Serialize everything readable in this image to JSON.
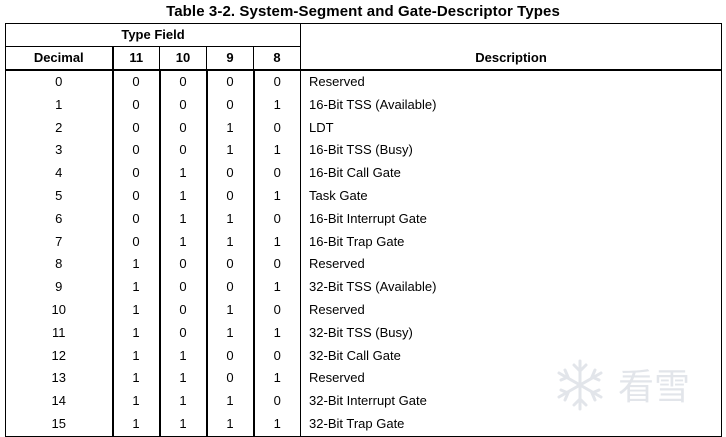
{
  "title": "Table 3-2.  System-Segment and Gate-Descriptor Types",
  "headers": {
    "type_field": "Type Field",
    "decimal": "Decimal",
    "bits": [
      "11",
      "10",
      "9",
      "8"
    ],
    "description": "Description"
  },
  "rows": [
    {
      "decimal": "0",
      "bits": [
        "0",
        "0",
        "0",
        "0"
      ],
      "description": "Reserved"
    },
    {
      "decimal": "1",
      "bits": [
        "0",
        "0",
        "0",
        "1"
      ],
      "description": "16-Bit TSS (Available)"
    },
    {
      "decimal": "2",
      "bits": [
        "0",
        "0",
        "1",
        "0"
      ],
      "description": "LDT"
    },
    {
      "decimal": "3",
      "bits": [
        "0",
        "0",
        "1",
        "1"
      ],
      "description": "16-Bit TSS (Busy)"
    },
    {
      "decimal": "4",
      "bits": [
        "0",
        "1",
        "0",
        "0"
      ],
      "description": "16-Bit Call Gate"
    },
    {
      "decimal": "5",
      "bits": [
        "0",
        "1",
        "0",
        "1"
      ],
      "description": "Task Gate"
    },
    {
      "decimal": "6",
      "bits": [
        "0",
        "1",
        "1",
        "0"
      ],
      "description": "16-Bit Interrupt Gate"
    },
    {
      "decimal": "7",
      "bits": [
        "0",
        "1",
        "1",
        "1"
      ],
      "description": "16-Bit Trap Gate"
    },
    {
      "decimal": "8",
      "bits": [
        "1",
        "0",
        "0",
        "0"
      ],
      "description": "Reserved"
    },
    {
      "decimal": "9",
      "bits": [
        "1",
        "0",
        "0",
        "1"
      ],
      "description": "32-Bit TSS (Available)"
    },
    {
      "decimal": "10",
      "bits": [
        "1",
        "0",
        "1",
        "0"
      ],
      "description": "Reserved"
    },
    {
      "decimal": "11",
      "bits": [
        "1",
        "0",
        "1",
        "1"
      ],
      "description": "32-Bit TSS (Busy)"
    },
    {
      "decimal": "12",
      "bits": [
        "1",
        "1",
        "0",
        "0"
      ],
      "description": "32-Bit Call Gate"
    },
    {
      "decimal": "13",
      "bits": [
        "1",
        "1",
        "0",
        "1"
      ],
      "description": "Reserved"
    },
    {
      "decimal": "14",
      "bits": [
        "1",
        "1",
        "1",
        "0"
      ],
      "description": "32-Bit Interrupt Gate"
    },
    {
      "decimal": "15",
      "bits": [
        "1",
        "1",
        "1",
        "1"
      ],
      "description": "32-Bit Trap Gate"
    }
  ],
  "watermark": {
    "text": "看雪",
    "icon": "snowflake-icon",
    "color": "#9aa3b5"
  }
}
